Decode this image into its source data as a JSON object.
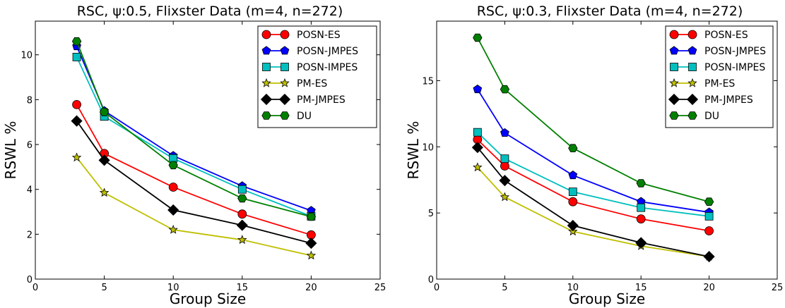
{
  "chart_data": [
    {
      "type": "line",
      "title": "RSC,  ψ:0.5, Flixster Data (m=4, n=272)",
      "xlabel": "Group Size",
      "ylabel": "RSWL %",
      "xlim": [
        0,
        25
      ],
      "ylim": [
        0,
        11.5
      ],
      "xticks": [
        0,
        5,
        10,
        15,
        20,
        25
      ],
      "yticks": [
        0,
        2,
        4,
        6,
        8,
        10
      ],
      "grid": false,
      "legend_position": "top-right",
      "x": [
        3,
        5,
        10,
        15,
        20
      ],
      "series": [
        {
          "name": "POSN-ES",
          "values": [
            7.78,
            5.6,
            4.1,
            2.9,
            1.97
          ],
          "color": "#ff0000",
          "marker": "circle"
        },
        {
          "name": "POSN-JMPES",
          "values": [
            10.38,
            7.5,
            5.5,
            4.15,
            3.05
          ],
          "color": "#0000ff",
          "marker": "pentagon"
        },
        {
          "name": "POSN-IMPES",
          "values": [
            9.9,
            7.25,
            5.38,
            4.0,
            2.8
          ],
          "color": "#00bfbf",
          "marker": "square"
        },
        {
          "name": "PM-ES",
          "values": [
            5.42,
            3.85,
            2.2,
            1.75,
            1.05
          ],
          "color": "#bfbf00",
          "marker": "star"
        },
        {
          "name": "PM-JMPES",
          "values": [
            7.05,
            5.3,
            3.08,
            2.4,
            1.6
          ],
          "color": "#000000",
          "marker": "diamond"
        },
        {
          "name": "DU",
          "values": [
            10.6,
            7.45,
            5.08,
            3.6,
            2.78
          ],
          "color": "#008000",
          "marker": "hexagon"
        }
      ]
    },
    {
      "type": "line",
      "title": "RSC,  ψ:0.3, Flixster Data (m=4, n=272)",
      "xlabel": "Group Size",
      "ylabel": "RSWL %",
      "xlim": [
        0,
        25
      ],
      "ylim": [
        0,
        19.5
      ],
      "xticks": [
        0,
        5,
        10,
        15,
        20,
        25
      ],
      "yticks": [
        0,
        5,
        10,
        15
      ],
      "grid": false,
      "legend_position": "top-right",
      "x": [
        3,
        5,
        10,
        15,
        20
      ],
      "series": [
        {
          "name": "POSN-ES",
          "values": [
            10.55,
            8.55,
            5.85,
            4.55,
            3.65
          ],
          "color": "#ff0000",
          "marker": "circle"
        },
        {
          "name": "POSN-JMPES",
          "values": [
            14.35,
            11.05,
            7.85,
            5.85,
            5.05
          ],
          "color": "#0000ff",
          "marker": "pentagon"
        },
        {
          "name": "POSN-IMPES",
          "values": [
            11.1,
            9.1,
            6.6,
            5.4,
            4.75
          ],
          "color": "#00bfbf",
          "marker": "square"
        },
        {
          "name": "PM-ES",
          "values": [
            8.45,
            6.2,
            3.6,
            2.5,
            1.7
          ],
          "color": "#bfbf00",
          "marker": "star"
        },
        {
          "name": "PM-JMPES",
          "values": [
            9.95,
            7.45,
            4.05,
            2.75,
            1.7
          ],
          "color": "#000000",
          "marker": "diamond"
        },
        {
          "name": "DU",
          "values": [
            18.25,
            14.35,
            9.9,
            7.25,
            5.85
          ],
          "color": "#008000",
          "marker": "hexagon"
        }
      ]
    }
  ]
}
